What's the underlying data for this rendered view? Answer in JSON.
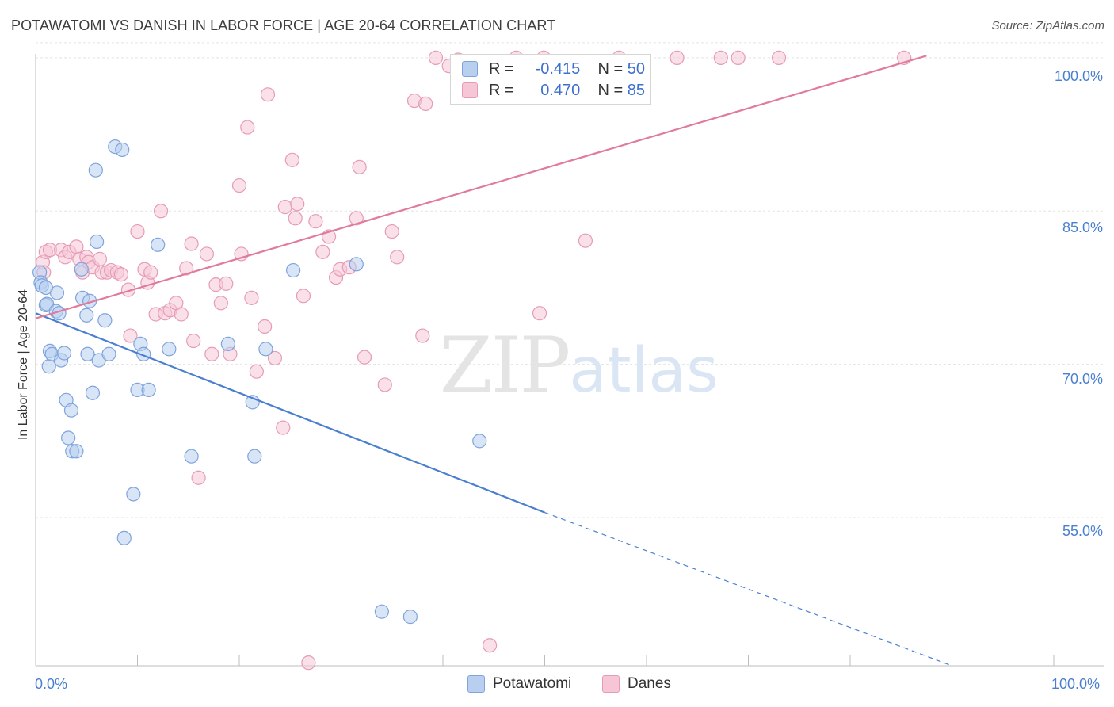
{
  "title": "POTAWATOMI VS DANISH IN LABOR FORCE | AGE 20-64 CORRELATION CHART",
  "source": "Source: ZipAtlas.com",
  "watermark": {
    "zip": "ZIP",
    "atlas": "atlas"
  },
  "colors": {
    "blue": "#4a7fd0",
    "pink": "#e07a9e",
    "blue_fill": "#b8cff0",
    "pink_fill": "#f6c6d6"
  },
  "legend": {
    "r_label": "R =",
    "n_label": "N =",
    "rows": [
      {
        "r": "-0.415",
        "n": "50"
      },
      {
        "r": "0.470",
        "n": "85"
      }
    ]
  },
  "chart_data": {
    "type": "scatter",
    "xlabel": "",
    "ylabel": "In Labor Force | Age 20-64",
    "xlim": [
      0,
      100
    ],
    "ylim": [
      40.5,
      101
    ],
    "x_tick_labels": [
      "0.0%",
      "100.0%"
    ],
    "y_ticks": [
      {
        "value": 100,
        "label": "100.0%"
      },
      {
        "value": 85,
        "label": "85.0%"
      },
      {
        "value": 70,
        "label": "70.0%"
      },
      {
        "value": 55,
        "label": "55.0%"
      }
    ],
    "grid": true,
    "legend_position": "bottom",
    "series": [
      {
        "name": "Potawatomi",
        "color": "#4a7fd0",
        "trend": {
          "x0": 0,
          "y0": 75.0,
          "x1": 50,
          "y1": 55.5,
          "dashed_to_x": 90,
          "dashed_to_y": 40.5
        },
        "points": [
          [
            0.4,
            79.0
          ],
          [
            0.5,
            78.0
          ],
          [
            0.6,
            77.7
          ],
          [
            1.0,
            75.8
          ],
          [
            1.1,
            75.9
          ],
          [
            1.3,
            69.8
          ],
          [
            1.4,
            71.3
          ],
          [
            1.6,
            71.0
          ],
          [
            2.0,
            75.2
          ],
          [
            2.1,
            77.0
          ],
          [
            2.3,
            75.0
          ],
          [
            2.5,
            70.4
          ],
          [
            2.8,
            71.1
          ],
          [
            3.0,
            66.5
          ],
          [
            3.2,
            62.8
          ],
          [
            3.5,
            65.5
          ],
          [
            3.6,
            61.5
          ],
          [
            4.0,
            61.5
          ],
          [
            4.5,
            79.3
          ],
          [
            4.6,
            76.5
          ],
          [
            5.0,
            74.8
          ],
          [
            5.1,
            71.0
          ],
          [
            5.3,
            76.2
          ],
          [
            5.6,
            67.2
          ],
          [
            5.9,
            89.0
          ],
          [
            6.0,
            82.0
          ],
          [
            6.2,
            70.4
          ],
          [
            6.8,
            74.3
          ],
          [
            7.2,
            71.0
          ],
          [
            7.8,
            91.3
          ],
          [
            8.5,
            91.0
          ],
          [
            8.7,
            53.0
          ],
          [
            9.6,
            57.3
          ],
          [
            10.0,
            67.5
          ],
          [
            10.3,
            72.0
          ],
          [
            10.6,
            71.0
          ],
          [
            11.1,
            67.5
          ],
          [
            12.0,
            81.7
          ],
          [
            13.1,
            71.5
          ],
          [
            15.3,
            61.0
          ],
          [
            18.9,
            72.0
          ],
          [
            21.3,
            66.3
          ],
          [
            21.5,
            61.0
          ],
          [
            22.6,
            71.5
          ],
          [
            25.3,
            79.2
          ],
          [
            31.5,
            79.8
          ],
          [
            34.0,
            45.8
          ],
          [
            36.8,
            45.3
          ],
          [
            43.6,
            62.5
          ],
          [
            1.0,
            77.5
          ]
        ]
      },
      {
        "name": "Danes",
        "color": "#e07a9e",
        "trend": {
          "x0": 0,
          "y0": 74.5,
          "x1": 87.5,
          "y1": 100.2
        },
        "points": [
          [
            0.7,
            80.0
          ],
          [
            0.8,
            79.0
          ],
          [
            1.0,
            81.0
          ],
          [
            1.4,
            81.2
          ],
          [
            2.5,
            81.2
          ],
          [
            2.9,
            80.5
          ],
          [
            3.3,
            81.0
          ],
          [
            4.0,
            81.5
          ],
          [
            4.3,
            80.3
          ],
          [
            4.6,
            79.0
          ],
          [
            5.0,
            80.5
          ],
          [
            5.2,
            80.0
          ],
          [
            5.6,
            79.5
          ],
          [
            6.3,
            80.3
          ],
          [
            6.5,
            79.0
          ],
          [
            7.0,
            79.0
          ],
          [
            7.4,
            79.2
          ],
          [
            8.0,
            79.0
          ],
          [
            8.4,
            78.8
          ],
          [
            9.1,
            77.3
          ],
          [
            9.3,
            72.8
          ],
          [
            10.0,
            83.0
          ],
          [
            10.7,
            79.3
          ],
          [
            11.0,
            78.0
          ],
          [
            11.3,
            79.0
          ],
          [
            11.8,
            74.9
          ],
          [
            12.3,
            85.0
          ],
          [
            12.7,
            75.0
          ],
          [
            13.2,
            75.3
          ],
          [
            13.8,
            76.0
          ],
          [
            14.3,
            74.9
          ],
          [
            14.8,
            79.4
          ],
          [
            15.3,
            81.8
          ],
          [
            15.5,
            72.3
          ],
          [
            16.0,
            58.9
          ],
          [
            16.8,
            80.8
          ],
          [
            17.3,
            71.0
          ],
          [
            17.7,
            77.8
          ],
          [
            18.2,
            76.0
          ],
          [
            18.7,
            77.9
          ],
          [
            19.1,
            71.0
          ],
          [
            20.0,
            87.5
          ],
          [
            20.2,
            80.8
          ],
          [
            20.8,
            93.2
          ],
          [
            21.2,
            76.5
          ],
          [
            21.7,
            69.3
          ],
          [
            22.5,
            73.7
          ],
          [
            22.8,
            96.4
          ],
          [
            23.5,
            70.6
          ],
          [
            24.3,
            63.8
          ],
          [
            24.5,
            85.4
          ],
          [
            25.2,
            90.0
          ],
          [
            25.5,
            84.3
          ],
          [
            25.7,
            85.7
          ],
          [
            26.3,
            76.7
          ],
          [
            26.8,
            40.8
          ],
          [
            27.5,
            84.0
          ],
          [
            28.2,
            81.0
          ],
          [
            28.8,
            82.5
          ],
          [
            29.5,
            78.5
          ],
          [
            29.9,
            79.3
          ],
          [
            30.8,
            79.5
          ],
          [
            31.5,
            84.3
          ],
          [
            31.8,
            89.3
          ],
          [
            32.3,
            70.7
          ],
          [
            34.3,
            68.0
          ],
          [
            35.0,
            83.0
          ],
          [
            35.5,
            80.5
          ],
          [
            37.2,
            95.8
          ],
          [
            38.0,
            72.8
          ],
          [
            38.3,
            95.5
          ],
          [
            39.3,
            100.0
          ],
          [
            40.6,
            99.2
          ],
          [
            41.5,
            99.8
          ],
          [
            44.6,
            42.5
          ],
          [
            47.2,
            100.0
          ],
          [
            49.5,
            75.0
          ],
          [
            49.9,
            100.0
          ],
          [
            54.0,
            82.1
          ],
          [
            57.3,
            100.0
          ],
          [
            63.0,
            100.0
          ],
          [
            67.3,
            100.0
          ],
          [
            69.0,
            100.0
          ],
          [
            73.0,
            100.0
          ],
          [
            85.3,
            100.0
          ]
        ]
      }
    ]
  }
}
